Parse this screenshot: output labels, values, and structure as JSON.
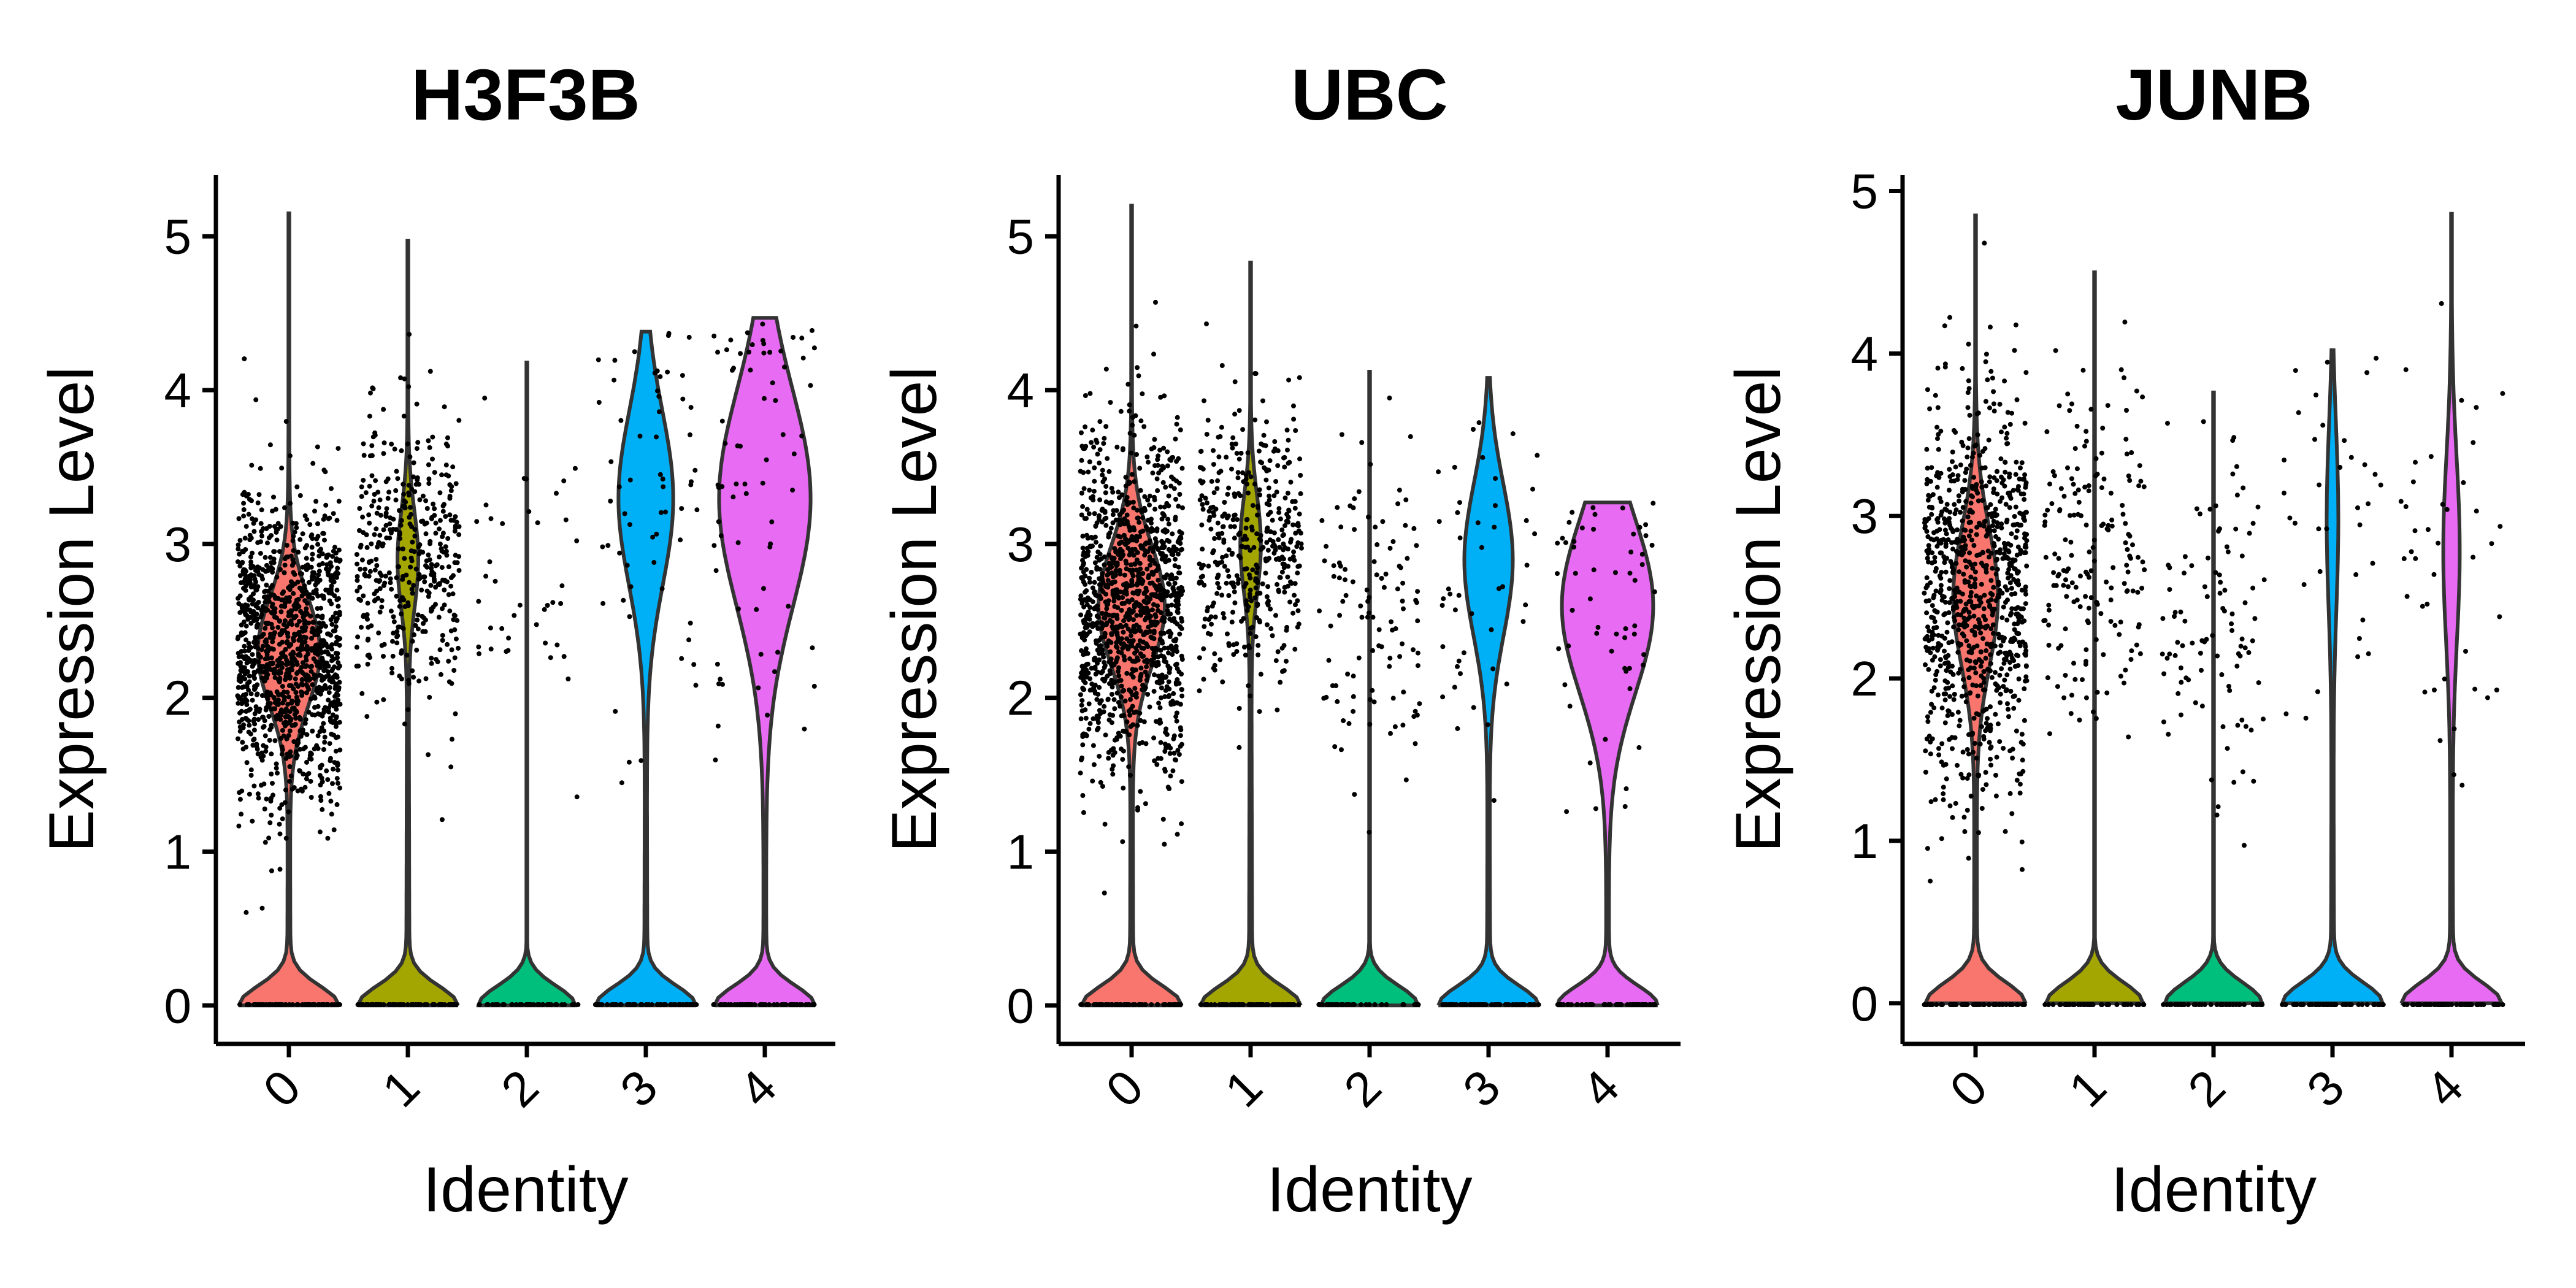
{
  "chart_data": [
    {
      "type": "violin",
      "title": "H3F3B",
      "xlabel": "Identity",
      "ylabel": "Expression Level",
      "ylim": [
        -0.25,
        5.4
      ],
      "yticks": [
        "0",
        "1",
        "2",
        "3",
        "4",
        "5"
      ],
      "categories": [
        "0",
        "1",
        "2",
        "3",
        "4"
      ],
      "colors": [
        "#F8766D",
        "#A3A500",
        "#00BF7D",
        "#00B0F6",
        "#E76BF3"
      ],
      "groups": [
        {
          "identity": "0",
          "color": "#F8766D",
          "max": 5.15,
          "zero_width": 0.45,
          "mode": 2.3,
          "mode_width": 0.28,
          "spread": 0.5,
          "neck": 1.05,
          "points": 1200,
          "zero_points": 60
        },
        {
          "identity": "1",
          "color": "#A3A500",
          "max": 4.97,
          "zero_width": 0.45,
          "mode": 2.9,
          "mode_width": 0.09,
          "spread": 0.45,
          "neck": 1.3,
          "points": 420,
          "zero_points": 60
        },
        {
          "identity": "2",
          "color": "#00BF7D",
          "max": 4.18,
          "zero_width": 0.45,
          "mode": 0,
          "mode_width": 0,
          "spread": 0.5,
          "neck": 0,
          "points": 40,
          "zero_points": 40
        },
        {
          "identity": "3",
          "color": "#00B0F6",
          "max": 4.38,
          "zero_width": 0.45,
          "mode": 3.3,
          "mode_width": 0.25,
          "spread": 0.8,
          "neck": 1.5,
          "points": 60,
          "zero_points": 60
        },
        {
          "identity": "4",
          "color": "#E76BF3",
          "max": 4.47,
          "zero_width": 0.45,
          "mode": 3.3,
          "mode_width": 0.42,
          "spread": 1.0,
          "neck": 1.2,
          "points": 70,
          "zero_points": 60
        }
      ]
    },
    {
      "type": "violin",
      "title": "UBC",
      "xlabel": "Identity",
      "ylabel": "Expression Level",
      "ylim": [
        -0.25,
        5.4
      ],
      "yticks": [
        "0",
        "1",
        "2",
        "3",
        "4",
        "5"
      ],
      "categories": [
        "0",
        "1",
        "2",
        "3",
        "4"
      ],
      "colors": [
        "#F8766D",
        "#A3A500",
        "#00BF7D",
        "#00B0F6",
        "#E76BF3"
      ],
      "groups": [
        {
          "identity": "0",
          "color": "#F8766D",
          "max": 5.2,
          "zero_width": 0.45,
          "mode": 2.6,
          "mode_width": 0.3,
          "spread": 0.55,
          "neck": 1.05,
          "points": 1200,
          "zero_points": 60
        },
        {
          "identity": "1",
          "color": "#A3A500",
          "max": 4.83,
          "zero_width": 0.45,
          "mode": 3.0,
          "mode_width": 0.09,
          "spread": 0.45,
          "neck": 1.3,
          "points": 420,
          "zero_points": 60
        },
        {
          "identity": "2",
          "color": "#00BF7D",
          "max": 4.12,
          "zero_width": 0.45,
          "mode": 0,
          "mode_width": 0,
          "spread": 0.5,
          "neck": 0,
          "points": 110,
          "zero_points": 40
        },
        {
          "identity": "3",
          "color": "#00B0F6",
          "max": 4.08,
          "zero_width": 0.45,
          "mode": 2.9,
          "mode_width": 0.22,
          "spread": 0.7,
          "neck": 1.3,
          "points": 45,
          "zero_points": 60
        },
        {
          "identity": "4",
          "color": "#E76BF3",
          "max": 3.27,
          "zero_width": 0.45,
          "mode": 2.6,
          "mode_width": 0.42,
          "spread": 0.8,
          "neck": 1.2,
          "points": 55,
          "zero_points": 60
        }
      ]
    },
    {
      "type": "violin",
      "title": "JUNB",
      "xlabel": "Identity",
      "ylabel": "Expression Level",
      "ylim": [
        -0.25,
        5.1
      ],
      "yticks": [
        "0",
        "1",
        "2",
        "3",
        "4",
        "5"
      ],
      "categories": [
        "0",
        "1",
        "2",
        "3",
        "4"
      ],
      "colors": [
        "#F8766D",
        "#A3A500",
        "#00BF7D",
        "#00B0F6",
        "#E76BF3"
      ],
      "groups": [
        {
          "identity": "0",
          "color": "#F8766D",
          "max": 4.85,
          "zero_width": 0.45,
          "mode": 2.5,
          "mode_width": 0.2,
          "spread": 0.6,
          "neck": 1.05,
          "points": 900,
          "zero_points": 60
        },
        {
          "identity": "1",
          "color": "#A3A500",
          "max": 4.5,
          "zero_width": 0.45,
          "mode": 0,
          "mode_width": 0,
          "spread": 0.5,
          "neck": 0,
          "points": 180,
          "zero_points": 40
        },
        {
          "identity": "2",
          "color": "#00BF7D",
          "max": 3.76,
          "zero_width": 0.45,
          "mode": 0,
          "mode_width": 0,
          "spread": 0.5,
          "neck": 0,
          "points": 100,
          "zero_points": 40
        },
        {
          "identity": "3",
          "color": "#00B0F6",
          "max": 4.02,
          "zero_width": 0.45,
          "mode": 3.0,
          "mode_width": 0.05,
          "spread": 0.8,
          "neck": 1.3,
          "points": 35,
          "zero_points": 60
        },
        {
          "identity": "4",
          "color": "#E76BF3",
          "max": 4.86,
          "zero_width": 0.45,
          "mode": 2.8,
          "mode_width": 0.07,
          "spread": 0.8,
          "neck": 1.3,
          "points": 40,
          "zero_points": 60
        }
      ]
    }
  ]
}
